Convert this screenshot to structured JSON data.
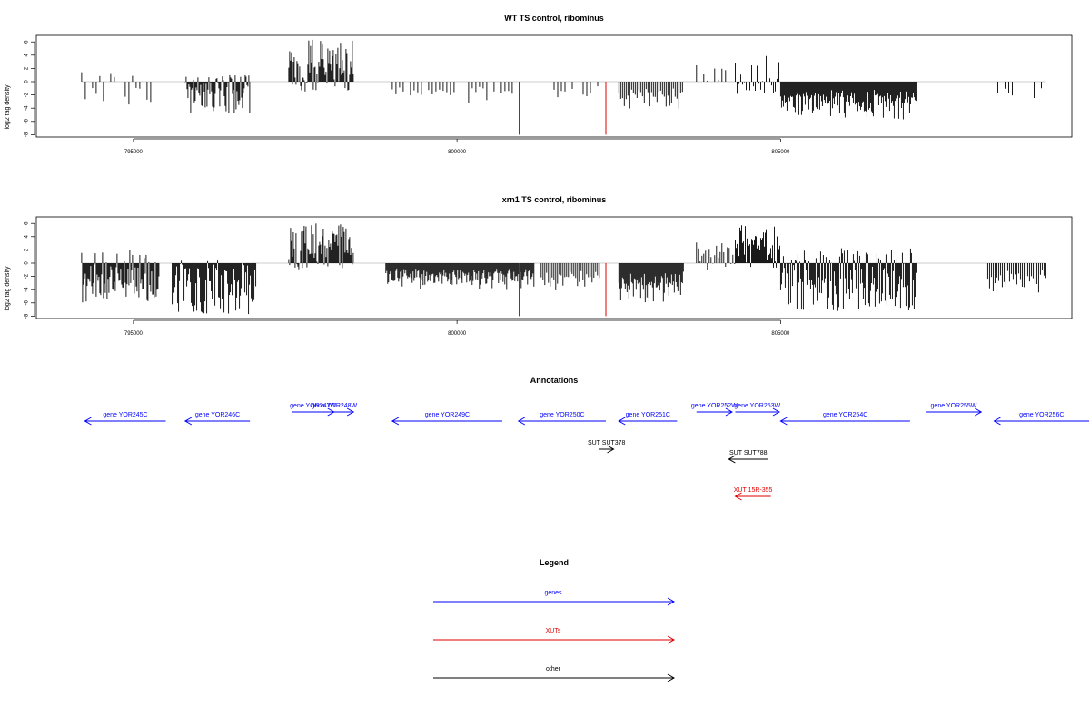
{
  "chart_data": [
    {
      "type": "bar",
      "title": "WT TS control, ribominus",
      "ylabel": "log2 tag density",
      "xlabel": "",
      "xlim": [
        793500,
        809500
      ],
      "ylim": [
        -8,
        7
      ],
      "xticks": [
        795000,
        800000,
        805000
      ],
      "xtick_labels": [
        "795000",
        "800000",
        "805000"
      ],
      "yticks": [
        6,
        4,
        2,
        0,
        -2,
        -4,
        -6,
        -8
      ],
      "ytick_labels": [
        "6",
        "4",
        "2",
        "0",
        "-2",
        "-4",
        "-6",
        "-8"
      ],
      "grid": false,
      "segments": [
        {
          "from": 794200,
          "to": 795400,
          "min": -3.6,
          "max": 1.7,
          "density": "sparse"
        },
        {
          "from": 795800,
          "to": 796800,
          "min": -4.8,
          "max": 1.0,
          "density": "dense"
        },
        {
          "from": 797400,
          "to": 798400,
          "min": -1.5,
          "max": 6.4,
          "density": "dense"
        },
        {
          "from": 799000,
          "to": 800900,
          "min": -3.4,
          "max": 0,
          "density": "sparse"
        },
        {
          "from": 801500,
          "to": 802200,
          "min": -3.0,
          "max": 0,
          "density": "sparse"
        },
        {
          "from": 802500,
          "to": 803500,
          "min": -4.6,
          "max": 0,
          "density": "medium"
        },
        {
          "from": 803700,
          "to": 804200,
          "min": -1.0,
          "max": 2.6,
          "density": "sparse"
        },
        {
          "from": 804300,
          "to": 805000,
          "min": -2.0,
          "max": 4.0,
          "density": "medium"
        },
        {
          "from": 805000,
          "to": 807100,
          "min": -6.0,
          "max": 0,
          "density": "dense"
        },
        {
          "from": 808300,
          "to": 809100,
          "min": -3.5,
          "max": 0,
          "density": "sparse"
        }
      ],
      "highlights": [
        {
          "x": 800960,
          "y": -8,
          "color": "#e00000"
        },
        {
          "x": 802300,
          "y": -8,
          "color": "#e00000"
        }
      ]
    },
    {
      "type": "bar",
      "title": "xrn1 TS control, ribominus",
      "ylabel": "log2 tag density",
      "xlabel": "",
      "xlim": [
        793500,
        809500
      ],
      "ylim": [
        -8,
        7
      ],
      "xticks": [
        795000,
        800000,
        805000
      ],
      "xtick_labels": [
        "795000",
        "800000",
        "805000"
      ],
      "yticks": [
        6,
        4,
        2,
        0,
        -2,
        -4,
        -6,
        -8
      ],
      "ytick_labels": [
        "6",
        "4",
        "2",
        "0",
        "-2",
        "-4",
        "-6",
        "-8"
      ],
      "grid": false,
      "segments": [
        {
          "from": 794200,
          "to": 795400,
          "min": -6.0,
          "max": 2.1,
          "density": "dense"
        },
        {
          "from": 795600,
          "to": 796900,
          "min": -7.8,
          "max": 0.5,
          "density": "dense"
        },
        {
          "from": 797400,
          "to": 798400,
          "min": -1.0,
          "max": 6.0,
          "density": "dense"
        },
        {
          "from": 798900,
          "to": 801200,
          "min": -4.2,
          "max": 0,
          "density": "dense"
        },
        {
          "from": 801300,
          "to": 802200,
          "min": -4.4,
          "max": 0,
          "density": "medium"
        },
        {
          "from": 802500,
          "to": 803500,
          "min": -6.5,
          "max": 0,
          "density": "dense"
        },
        {
          "from": 803700,
          "to": 804300,
          "min": -1.0,
          "max": 3.2,
          "density": "medium"
        },
        {
          "from": 804300,
          "to": 805000,
          "min": -1.0,
          "max": 5.8,
          "density": "dense"
        },
        {
          "from": 805000,
          "to": 807100,
          "min": -7.2,
          "max": 2.3,
          "density": "dense"
        },
        {
          "from": 808200,
          "to": 809100,
          "min": -4.8,
          "max": 0,
          "density": "medium"
        }
      ],
      "highlights": [
        {
          "x": 800960,
          "y": -8,
          "color": "#e00000"
        },
        {
          "x": 802300,
          "y": -8,
          "color": "#e00000"
        }
      ]
    }
  ],
  "annotations": {
    "title": "Annotations",
    "features": [
      {
        "label": "gene YOR245C",
        "start": 794250,
        "end": 795500,
        "strand": "-",
        "kind": "genes",
        "row": 0
      },
      {
        "label": "gene YOR246C",
        "start": 795800,
        "end": 796800,
        "strand": "-",
        "kind": "genes",
        "row": 0
      },
      {
        "label": "gene YOR247W",
        "start": 797450,
        "end": 798100,
        "strand": "+",
        "kind": "genes",
        "row": 0
      },
      {
        "label": "gene YOR248W",
        "start": 797800,
        "end": 798400,
        "strand": "+",
        "kind": "genes",
        "row": 0
      },
      {
        "label": "gene YOR249C",
        "start": 799000,
        "end": 800700,
        "strand": "-",
        "kind": "genes",
        "row": 0
      },
      {
        "label": "gene YOR250C",
        "start": 800950,
        "end": 802300,
        "strand": "-",
        "kind": "genes",
        "row": 0
      },
      {
        "label": "gene YOR251C",
        "start": 802500,
        "end": 803400,
        "strand": "-",
        "kind": "genes",
        "row": 0
      },
      {
        "label": "gene YOR252W",
        "start": 803700,
        "end": 804250,
        "strand": "+",
        "kind": "genes",
        "row": 0
      },
      {
        "label": "gene YOR253W",
        "start": 804300,
        "end": 804980,
        "strand": "+",
        "kind": "genes",
        "row": 0
      },
      {
        "label": "gene YOR254C",
        "start": 805000,
        "end": 807000,
        "strand": "-",
        "kind": "genes",
        "row": 0
      },
      {
        "label": "gene YOR255W",
        "start": 807250,
        "end": 808100,
        "strand": "+",
        "kind": "genes",
        "row": 0
      },
      {
        "label": "gene YOR256C",
        "start": 808300,
        "end": 809800,
        "strand": "-",
        "kind": "genes",
        "row": 0
      },
      {
        "label": "SUT SUT378",
        "start": 802200,
        "end": 802420,
        "strand": "+",
        "kind": "other",
        "row": 1
      },
      {
        "label": "SUT SUT788",
        "start": 804200,
        "end": 804800,
        "strand": "-",
        "kind": "other",
        "row": 2
      },
      {
        "label": "XUT 15R-355",
        "start": 804300,
        "end": 804850,
        "strand": "-",
        "kind": "XUTs",
        "row": 3
      }
    ]
  },
  "legend": {
    "title": "Legend",
    "items": [
      {
        "label": "genes",
        "color": "#0000ff"
      },
      {
        "label": "XUTs",
        "color": "#e00000"
      },
      {
        "label": "other",
        "color": "#000000"
      }
    ]
  },
  "colors": {
    "genes": "#0000ff",
    "XUTs": "#e00000",
    "other": "#000000",
    "bars": "#000000",
    "baseline": "#999999"
  }
}
